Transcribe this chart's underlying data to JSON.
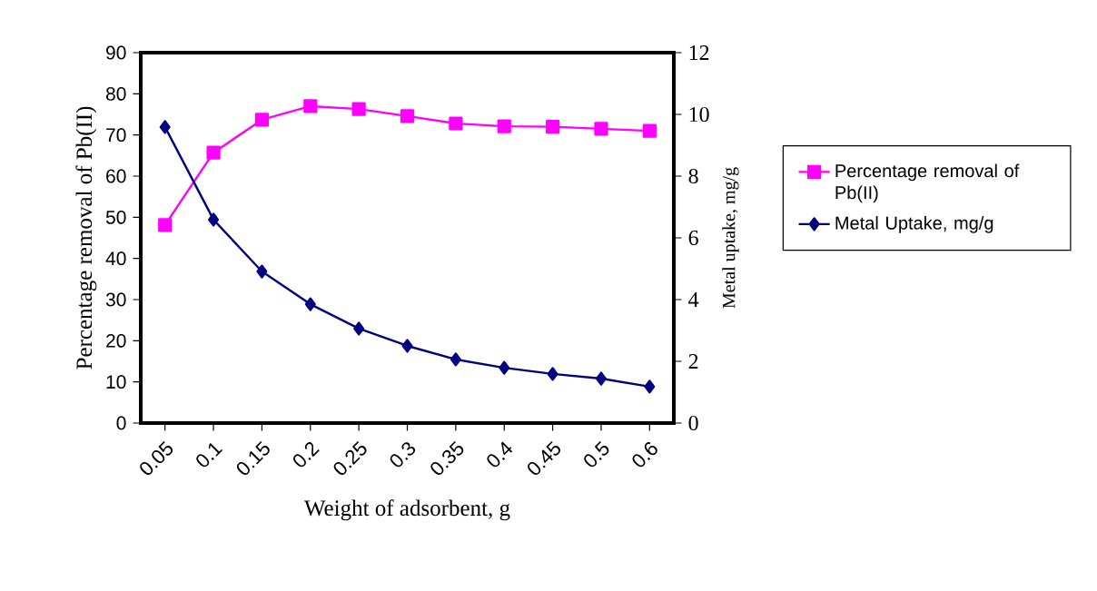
{
  "chart_data": {
    "type": "line",
    "xlabel": "Weight of adsorbent, g",
    "ylabel": "Percentage removal of Pb(II)",
    "y2label": "Metal uptake, mg/g",
    "categories": [
      "0.05",
      "0.1",
      "0.15",
      "0.2",
      "0.25",
      "0.3",
      "0.35",
      "0.4",
      "0.45",
      "0.5",
      "0.6"
    ],
    "series": [
      {
        "name": "Percentage removal of Pb(II)",
        "color": "#ff00ff",
        "marker": "square",
        "values": [
          48.1,
          65.7,
          73.7,
          77,
          76.3,
          74.6,
          72.8,
          72.1,
          72,
          71.5,
          71
        ]
      },
      {
        "name": "Metal Uptake, mg/g",
        "color": "#000080",
        "marker": "diamond",
        "axis": "y2",
        "values": [
          9.59,
          6.59,
          4.91,
          3.85,
          3.06,
          2.5,
          2.06,
          1.79,
          1.59,
          1.44,
          1.18
        ]
      }
    ],
    "ylim": [
      0,
      90
    ],
    "yticks": [
      0,
      10,
      20,
      30,
      40,
      50,
      60,
      70,
      80,
      90
    ],
    "y2lim": [
      0,
      12
    ],
    "y2ticks": [
      0,
      2,
      4,
      6,
      8,
      10,
      12
    ],
    "legend": "right",
    "grid": false,
    "line_style": "solid"
  }
}
